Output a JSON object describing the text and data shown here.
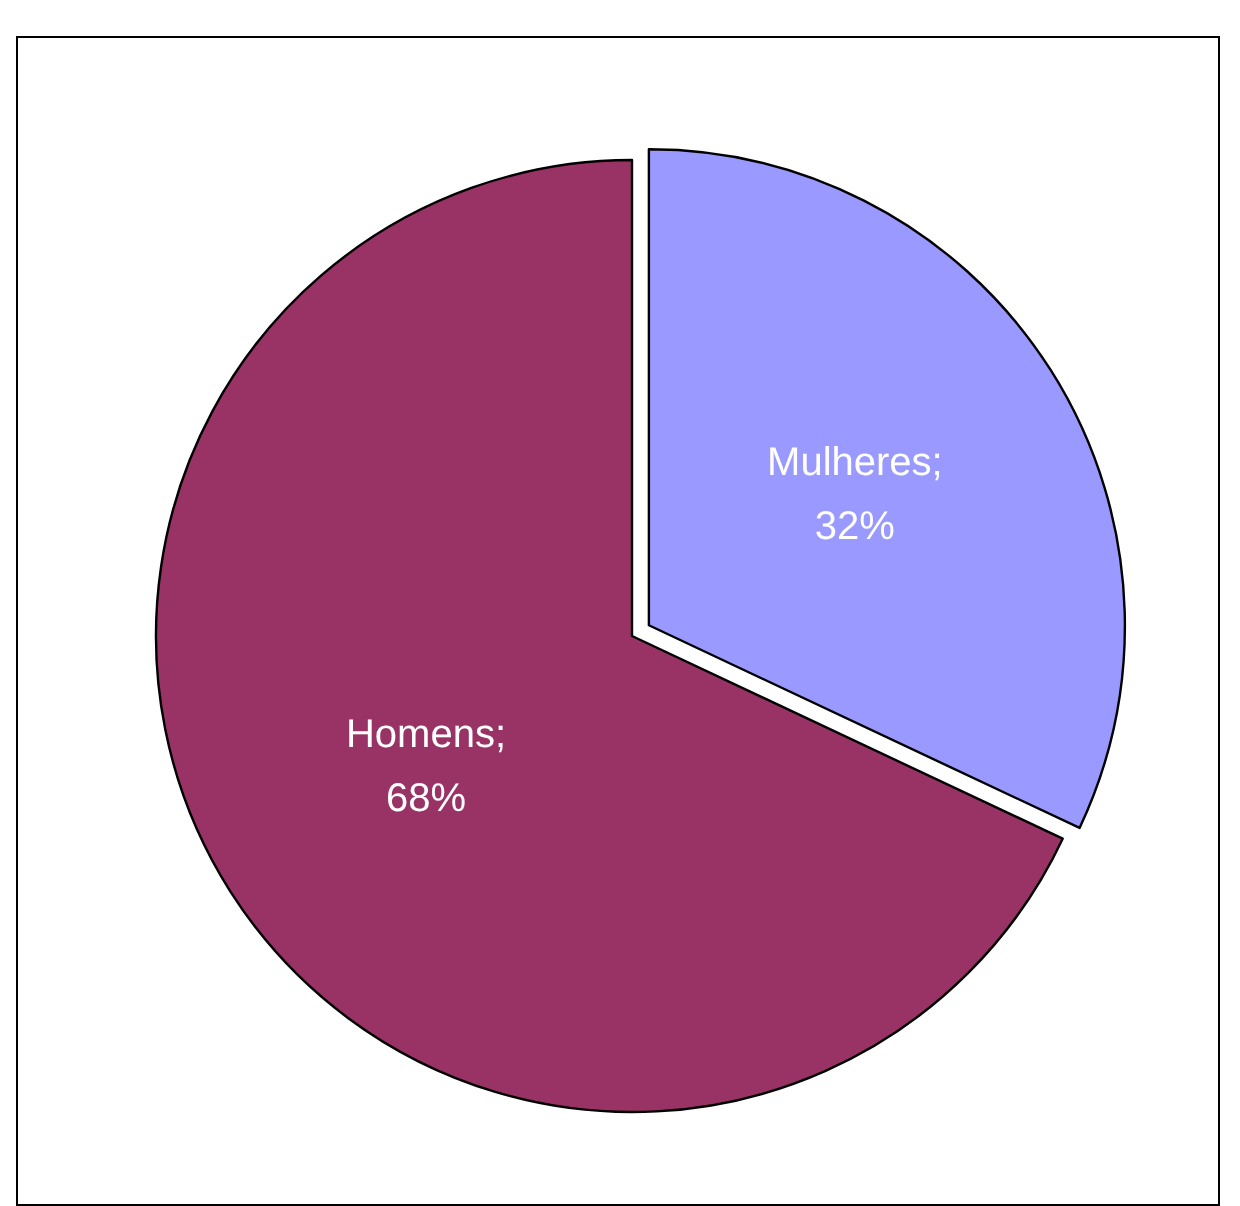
{
  "chart_data": {
    "type": "pie",
    "categories": [
      "Mulheres",
      "Homens"
    ],
    "values": [
      32,
      68
    ],
    "colors": [
      "#9999ff",
      "#993366"
    ],
    "value_labels": [
      "; 32%",
      "; 68%"
    ],
    "legend": false
  }
}
